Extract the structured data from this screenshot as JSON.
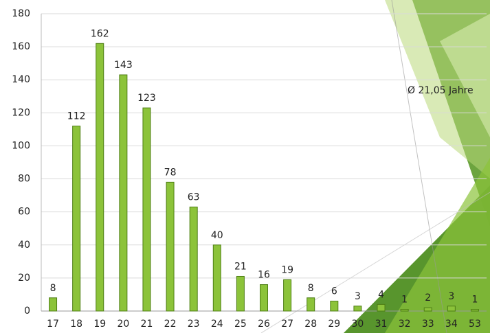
{
  "chart_data": {
    "type": "bar",
    "categories": [
      "17",
      "18",
      "19",
      "20",
      "21",
      "22",
      "23",
      "24",
      "25",
      "26",
      "27",
      "28",
      "29",
      "30",
      "31",
      "32",
      "33",
      "34",
      "53"
    ],
    "values": [
      8,
      112,
      162,
      143,
      123,
      78,
      63,
      40,
      21,
      16,
      19,
      8,
      6,
      3,
      4,
      1,
      2,
      3,
      1
    ],
    "color": "#8cc33a",
    "ylim": [
      0,
      180
    ],
    "yticks": [
      0,
      20,
      40,
      60,
      80,
      100,
      120,
      140,
      160,
      180
    ],
    "grid": true,
    "annotation": "Ø 21,05 Jahre"
  }
}
